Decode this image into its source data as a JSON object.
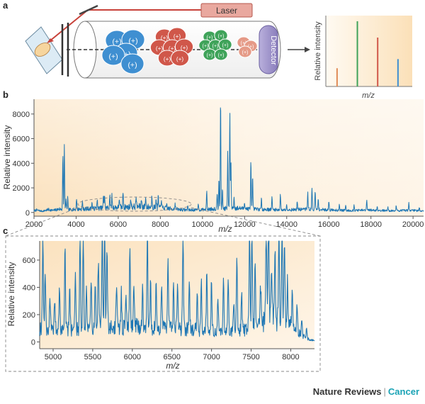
{
  "colors": {
    "ion_blue": "#3f8fd1",
    "ion_red": "#d0574a",
    "ion_green": "#3fa35a",
    "ion_salmon": "#e59a87",
    "peak_orange": "#e08a56",
    "laser": "#c8423a",
    "detector": "#9d91c8",
    "spectrum_line": "#1f77b4",
    "panel_fill": "#fbe6c9",
    "footer_accent": "#1aa3b5"
  },
  "panel_a": {
    "label": "a",
    "laser_label": "Laser",
    "detector_label": "Detector",
    "ion_charge_symbol": "(+)",
    "inset": {
      "ylabel": "Relative intensity",
      "xlabel": "m/z",
      "peaks": [
        {
          "color": "orange",
          "relative_height": 0.28
        },
        {
          "color": "green",
          "relative_height": 1.0
        },
        {
          "color": "red",
          "relative_height": 0.75
        },
        {
          "color": "blue",
          "relative_height": 0.42
        }
      ]
    }
  },
  "chart_data": [
    {
      "panel": "b",
      "label": "b",
      "type": "line",
      "xlabel": "m/z",
      "ylabel": "Relative intensity",
      "xlim": [
        2000,
        20500
      ],
      "ylim": [
        -300,
        9200
      ],
      "xticks": [
        2000,
        4000,
        6000,
        8000,
        10000,
        12000,
        14000,
        16000,
        18000,
        20000
      ],
      "yticks": [
        0,
        2000,
        4000,
        6000,
        8000
      ],
      "baseline_noise": [
        2000,
        150,
        2100,
        250,
        2400,
        120,
        2700,
        300,
        2900,
        200,
        3200,
        350,
        3600,
        280,
        4300,
        350,
        5000,
        420,
        5700,
        500,
        6400,
        550,
        7100,
        600,
        7800,
        520,
        8500,
        380,
        9200,
        260,
        9800,
        250,
        10600,
        380,
        11500,
        450,
        12400,
        350,
        13200,
        300,
        14000,
        260,
        15000,
        340,
        16000,
        260,
        17000,
        200,
        18000,
        240,
        19000,
        170,
        20000,
        220,
        20500,
        150
      ],
      "peaks": [
        [
          3370,
          4400
        ],
        [
          3440,
          5400
        ],
        [
          3520,
          800
        ],
        [
          3600,
          1000
        ],
        [
          4020,
          900
        ],
        [
          4300,
          600
        ],
        [
          4750,
          500
        ],
        [
          5000,
          800
        ],
        [
          5300,
          1000
        ],
        [
          5350,
          1100
        ],
        [
          5600,
          1100
        ],
        [
          5700,
          1000
        ],
        [
          6050,
          800
        ],
        [
          6230,
          1300
        ],
        [
          6600,
          700
        ],
        [
          6850,
          900
        ],
        [
          7100,
          700
        ],
        [
          7300,
          800
        ],
        [
          7600,
          1000
        ],
        [
          7800,
          800
        ],
        [
          7900,
          900
        ],
        [
          8050,
          800
        ],
        [
          8300,
          400
        ],
        [
          8700,
          500
        ],
        [
          9300,
          350
        ],
        [
          9800,
          600
        ],
        [
          10200,
          1500
        ],
        [
          10700,
          1400
        ],
        [
          10780,
          2600
        ],
        [
          10860,
          8900
        ],
        [
          10950,
          1500
        ],
        [
          11200,
          4600
        ],
        [
          11300,
          7800
        ],
        [
          11350,
          3800
        ],
        [
          11500,
          900
        ],
        [
          12000,
          600
        ],
        [
          12300,
          4000
        ],
        [
          12380,
          2600
        ],
        [
          12800,
          800
        ],
        [
          13300,
          1000
        ],
        [
          13700,
          1300
        ],
        [
          14000,
          500
        ],
        [
          14500,
          700
        ],
        [
          15000,
          1500
        ],
        [
          15200,
          1700
        ],
        [
          15350,
          1500
        ],
        [
          15500,
          900
        ],
        [
          16000,
          800
        ],
        [
          16500,
          500
        ],
        [
          16800,
          400
        ],
        [
          17200,
          400
        ],
        [
          17800,
          800
        ],
        [
          18300,
          300
        ],
        [
          18800,
          300
        ],
        [
          19200,
          400
        ],
        [
          19800,
          700
        ],
        [
          20300,
          300
        ]
      ]
    },
    {
      "panel": "c",
      "label": "c",
      "type": "line",
      "xlabel": "m/z",
      "ylabel": "Relative intensity",
      "xlim": [
        4830,
        8300
      ],
      "ylim": [
        -50,
        740
      ],
      "xticks": [
        5000,
        5500,
        6000,
        6500,
        7000,
        7500,
        8000
      ],
      "yticks": [
        0,
        200,
        400,
        600
      ],
      "baseline_noise": [
        4830,
        130,
        5000,
        100,
        5200,
        120,
        5400,
        110,
        5600,
        150,
        5800,
        120,
        6000,
        150,
        6200,
        110,
        6400,
        140,
        6600,
        120,
        6800,
        110,
        7000,
        100,
        7200,
        90,
        7400,
        110,
        7600,
        170,
        7700,
        240,
        7750,
        230,
        7850,
        200,
        8000,
        150,
        8100,
        80,
        8200,
        30,
        8300,
        10
      ],
      "peaks": [
        [
          4870,
          690
        ],
        [
          4900,
          420
        ],
        [
          4960,
          250
        ],
        [
          5020,
          250
        ],
        [
          5080,
          300
        ],
        [
          5150,
          600
        ],
        [
          5210,
          300
        ],
        [
          5280,
          400
        ],
        [
          5340,
          740
        ],
        [
          5380,
          720
        ],
        [
          5420,
          300
        ],
        [
          5480,
          320
        ],
        [
          5530,
          300
        ],
        [
          5570,
          480
        ],
        [
          5620,
          740
        ],
        [
          5650,
          720
        ],
        [
          5680,
          600
        ],
        [
          5800,
          350
        ],
        [
          5860,
          260
        ],
        [
          5920,
          250
        ],
        [
          5970,
          600
        ],
        [
          6020,
          300
        ],
        [
          6130,
          330
        ],
        [
          6190,
          740
        ],
        [
          6230,
          360
        ],
        [
          6300,
          300
        ],
        [
          6370,
          320
        ],
        [
          6450,
          550
        ],
        [
          6520,
          300
        ],
        [
          6570,
          340
        ],
        [
          6640,
          740
        ],
        [
          6720,
          310
        ],
        [
          6820,
          300
        ],
        [
          6870,
          370
        ],
        [
          6940,
          450
        ],
        [
          7000,
          380
        ],
        [
          7080,
          240
        ],
        [
          7150,
          400
        ],
        [
          7210,
          380
        ],
        [
          7280,
          220
        ],
        [
          7320,
          550
        ],
        [
          7380,
          280
        ],
        [
          7480,
          740
        ],
        [
          7510,
          740
        ],
        [
          7550,
          430
        ],
        [
          7620,
          280
        ],
        [
          7690,
          740
        ],
        [
          7720,
          740
        ],
        [
          7760,
          400
        ],
        [
          7800,
          560
        ],
        [
          7850,
          740
        ],
        [
          7890,
          740
        ],
        [
          7920,
          620
        ],
        [
          7960,
          320
        ],
        [
          8020,
          250
        ],
        [
          8080,
          210
        ],
        [
          8140,
          130
        ],
        [
          8200,
          80
        ]
      ]
    }
  ],
  "footer": {
    "journal": "Nature Reviews",
    "separator": "|",
    "section": "Cancer"
  }
}
